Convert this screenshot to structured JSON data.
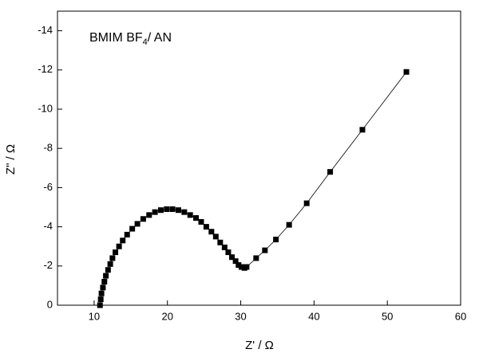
{
  "chart_data": {
    "type": "scatter-line",
    "annotation": {
      "text": "BMIM BF",
      "subscript": "4",
      "suffix": "/ AN"
    },
    "x_label": "Z' / Ω",
    "y_label": "Z\" / Ω",
    "color": "#000000",
    "xlim": [
      5,
      60
    ],
    "xticks": [
      10,
      20,
      30,
      40,
      50,
      60
    ],
    "ylim": [
      0,
      -15
    ],
    "yticks": [
      0,
      -2,
      -4,
      -6,
      -8,
      -10,
      -12,
      -14
    ],
    "x": [
      10.8,
      10.9,
      11.0,
      11.2,
      11.4,
      11.6,
      11.9,
      12.2,
      12.5,
      12.9,
      13.4,
      13.9,
      14.5,
      15.2,
      15.9,
      16.7,
      17.5,
      18.3,
      19.1,
      19.9,
      20.7,
      21.5,
      22.3,
      23.1,
      23.9,
      24.6,
      25.3,
      26.0,
      26.6,
      27.2,
      27.8,
      28.3,
      28.8,
      29.3,
      29.7,
      30.1,
      30.5,
      30.8,
      32.1,
      33.3,
      34.8,
      36.6,
      39.0,
      42.2,
      46.6,
      52.6
    ],
    "values": [
      0,
      -0.3,
      -0.6,
      -0.9,
      -1.2,
      -1.5,
      -1.8,
      -2.1,
      -2.4,
      -2.7,
      -3.0,
      -3.3,
      -3.6,
      -3.9,
      -4.15,
      -4.4,
      -4.6,
      -4.75,
      -4.85,
      -4.9,
      -4.9,
      -4.85,
      -4.75,
      -4.6,
      -4.45,
      -4.25,
      -4.0,
      -3.75,
      -3.5,
      -3.2,
      -2.95,
      -2.7,
      -2.45,
      -2.25,
      -2.05,
      -1.95,
      -1.9,
      -1.95,
      -2.4,
      -2.8,
      -3.35,
      -4.1,
      -5.2,
      -6.8,
      -8.95,
      -11.9
    ]
  }
}
